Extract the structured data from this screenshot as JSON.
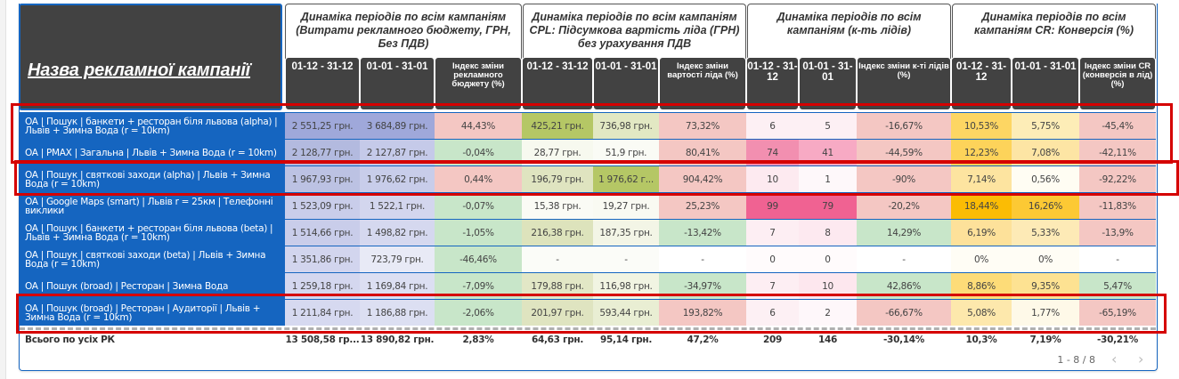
{
  "header": {
    "name_column": "Назва рекламної кампанії",
    "groups": [
      {
        "title": "Динаміка періодів по всім кампаніям (Витрати рекламного бюджету, ГРН, Без ПДВ)"
      },
      {
        "title": "Динаміка періодів по всім кампаніям CPL: Підсумкова вартість ліда (ГРН) без урахування ПДВ"
      },
      {
        "title": "Динаміка періодів по всім кампаніям (к-ть лідів)"
      },
      {
        "title": "Динаміка періодів по всім кампаніям CR: Конверсія (%)"
      }
    ],
    "columns": [
      "01-12 - 31-12",
      "01-01 - 31-01",
      "Індекс зміни рекламного бюджету (%)",
      "01-12 - 31-12",
      "01-01 - 31-01",
      "Індекс зміни вартості ліда (%)",
      "01-12 - 31-12",
      "01-01 - 31-01",
      "Індекс зміни к-ті лідів (%)",
      "01-12 - 31-12",
      "01-01 - 31-01",
      "Індекс зміни CR (конверсія в лід) (%)"
    ]
  },
  "rows": [
    {
      "name": "OA | Пошук | банкети + ресторан біля львова (alpha) | Львів + Зимна Вода (r = 10km)",
      "values": [
        "2 551,25 грн.",
        "3 684,89 грн.",
        "44,43%",
        "425,21 грн.",
        "736,98 грн.",
        "73,32%",
        "6",
        "5",
        "-16,67%",
        "10,53%",
        "5,75%",
        "-45,4%"
      ],
      "colors": [
        "#9fa8da",
        "#9fa8da",
        "#f4c7c3",
        "#b5c765",
        "#e2e8c3",
        "#f4c7c3",
        "#fdf0f4",
        "#fdf0f4",
        "#f4c7c3",
        "#fdd663",
        "#fdedb7",
        "#f4c7c3"
      ]
    },
    {
      "name": "OA | PMAX | Загальна | Львів + Зимна Вода (r = 10km)",
      "values": [
        "2 128,77 грн.",
        "2 127,87 грн.",
        "-0,04%",
        "28,77 грн.",
        "51,9 грн.",
        "80,41%",
        "74",
        "41",
        "-44,59%",
        "12,23%",
        "7,08%",
        "-42,11%"
      ],
      "colors": [
        "#b3badf",
        "#c5cae9",
        "#c8e6c9",
        "#f7f9ef",
        "#fafbf5",
        "#f4c7c3",
        "#f28fb0",
        "#f7aac4",
        "#f4c7c3",
        "#fdd35a",
        "#fde5a4",
        "#f4c7c3"
      ]
    },
    {
      "name": "OA | Пошук | святкові заходи (alpha) | Львів + Зимна Вода (r = 10km)",
      "values": [
        "1 967,93 грн.",
        "1 976,62 грн.",
        "0,44%",
        "196,79 грн.",
        "1 976,62 г...",
        "904,42%",
        "10",
        "1",
        "-90%",
        "7,14%",
        "0,56%",
        "-92,22%"
      ],
      "colors": [
        "#bcc2e3",
        "#c8cdea",
        "#f4c7c3",
        "#dfe4c0",
        "#b5c765",
        "#f4c7c3",
        "#fdeaf0",
        "#fef8fa",
        "#f4c7c3",
        "#fde4a0",
        "#fffdf3",
        "#f4c7c3"
      ]
    },
    {
      "name": "OA | Google Maps (smart) | Львів r = 25км | Телефонні виклики",
      "values": [
        "1 523,09 грн.",
        "1 522,1 грн.",
        "-0,07%",
        "15,38 грн.",
        "19,27 грн.",
        "25,23%",
        "99",
        "79",
        "-20,2%",
        "18,44%",
        "16,26%",
        "-11,83%"
      ],
      "colors": [
        "#c9cdea",
        "#d3d6ee",
        "#c8e6c9",
        "#fafbf5",
        "#f9faf2",
        "#f4c7c3",
        "#f06292",
        "#f06292",
        "#f4c7c3",
        "#fbbc04",
        "#fcc934",
        "#f4c7c3"
      ]
    },
    {
      "name": "OA | Пошук | банкети + ресторан біля львова (beta) | Львів + Зимна Вода (r = 10km)",
      "values": [
        "1 514,66 грн.",
        "1 498,82 грн.",
        "-1,05%",
        "216,38 грн.",
        "187,35 грн.",
        "-13,42%",
        "7",
        "8",
        "14,29%",
        "6,19%",
        "5,33%",
        "-13,9%"
      ],
      "colors": [
        "#c9cdea",
        "#d5d8ef",
        "#c8e6c9",
        "#dde3bc",
        "#f3f5e6",
        "#c8e6c9",
        "#fdeef3",
        "#fde9f0",
        "#c8e6c9",
        "#fde19a",
        "#fdeab6",
        "#f4c7c3"
      ]
    },
    {
      "name": "OA | Пошук | святкові заходи (beta) | Львів + Зимна Вода (r = 10km)",
      "values": [
        "1 351,86 грн.",
        "723,79 грн.",
        "-46,46%",
        "-",
        "-",
        "-",
        "0",
        "0",
        "-",
        "0%",
        "0%",
        "-"
      ],
      "colors": [
        "#d2d5ee",
        "#e8eaf6",
        "#c8e6c9",
        "#fbfcf8",
        "#fbfcf8",
        "#ffffff",
        "#fffbfc",
        "#fffbfc",
        "#ffffff",
        "#fffdf5",
        "#fffdf5",
        "#ffffff"
      ]
    },
    {
      "name": "OA | Пошук (broad) | Ресторан | Зимна Вода",
      "values": [
        "1 259,18 грн.",
        "1 169,84 грн.",
        "-7,09%",
        "179,88 грн.",
        "116,98 грн.",
        "-34,97%",
        "7",
        "10",
        "42,86%",
        "8,86%",
        "9,35%",
        "5,47%"
      ],
      "colors": [
        "#d4d7ef",
        "#dcdff2",
        "#c8e6c9",
        "#e2e7c6",
        "#f1f4e2",
        "#c8e6c9",
        "#fdeef3",
        "#fde7ee",
        "#c8e6c9",
        "#fddc78",
        "#fde292",
        "#c8e6c9"
      ]
    },
    {
      "name": "OA | Пошук (broad) | Ресторан | Аудиторії | Львів + Зимна Вода (r = 10km)",
      "values": [
        "1 211,84 грн.",
        "1 186,88 грн.",
        "-2,06%",
        "201,97 грн.",
        "593,44 грн.",
        "193,82%",
        "6",
        "2",
        "-66,67%",
        "5,08%",
        "1,77%",
        "-65,19%"
      ],
      "colors": [
        "#d6d9f0",
        "#dcdff2",
        "#c8e6c9",
        "#dfe4c0",
        "#e9eed3",
        "#f4c7c3",
        "#fdf0f4",
        "#fef7fa",
        "#f4c7c3",
        "#fde8ac",
        "#fef9e8",
        "#f4c7c3"
      ]
    }
  ],
  "total": {
    "label": "Всього по усіх РК",
    "values": [
      "13 508,58 гр...",
      "13 890,82 грн.",
      "2,83%",
      "64,63 грн.",
      "95,14 грн.",
      "47,2%",
      "209",
      "146",
      "-30,14%",
      "10,3%",
      "7,19%",
      "-30,21%"
    ]
  },
  "pagination": {
    "label": "1 - 8 / 8",
    "prev_icon": "‹",
    "next_icon": "›"
  }
}
